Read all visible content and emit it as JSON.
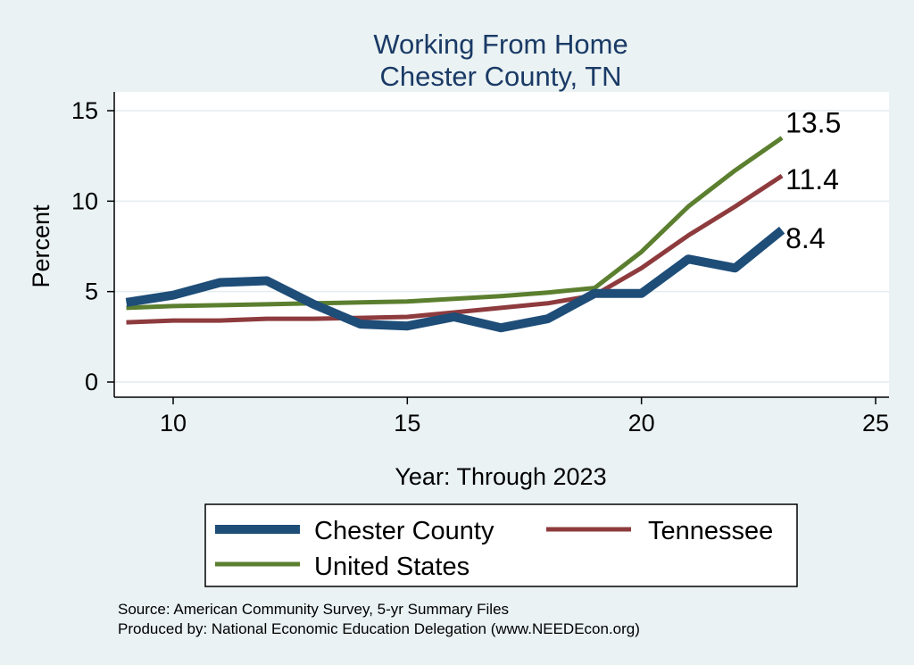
{
  "chart_data": {
    "type": "line",
    "title": [
      "Working From Home",
      "Chester County, TN"
    ],
    "xlabel": "Year: Through 2023",
    "ylabel": "Percent",
    "xlim": [
      9,
      25
    ],
    "ylim": [
      0,
      15
    ],
    "xticks": [
      10,
      15,
      20,
      25
    ],
    "yticks": [
      0,
      5,
      10,
      15
    ],
    "grid": true,
    "legend_position": "bottom",
    "x": [
      9,
      10,
      11,
      12,
      13,
      14,
      15,
      16,
      17,
      18,
      19,
      20,
      21,
      22,
      23
    ],
    "series": [
      {
        "name": "Chester County",
        "color": "#1e4d78",
        "width": 10,
        "values": [
          4.4,
          4.8,
          5.5,
          5.6,
          4.3,
          3.2,
          3.1,
          3.6,
          3.0,
          3.5,
          4.9,
          4.9,
          6.8,
          6.3,
          8.4
        ],
        "end_label": "8.4"
      },
      {
        "name": "Tennessee",
        "color": "#8e3b3e",
        "width": 5,
        "values": [
          3.3,
          3.4,
          3.4,
          3.5,
          3.5,
          3.55,
          3.6,
          3.85,
          4.1,
          4.35,
          4.8,
          6.3,
          8.1,
          9.7,
          11.4
        ],
        "end_label": "11.4"
      },
      {
        "name": "United States",
        "color": "#5b7f2f",
        "width": 5,
        "values": [
          4.1,
          4.2,
          4.25,
          4.3,
          4.35,
          4.4,
          4.45,
          4.6,
          4.75,
          4.95,
          5.2,
          7.2,
          9.7,
          11.7,
          13.5
        ],
        "end_label": "13.5"
      }
    ]
  },
  "legend": {
    "items": [
      "Chester County",
      "Tennessee",
      "United States"
    ]
  },
  "notes": {
    "source": "Source: American Community Survey, 5-yr Summary Files",
    "produced": "Produced by: National Economic Education Delegation (www.NEEDEcon.org)"
  },
  "colors": {
    "background": "#eaf2f3",
    "plot_background": "#ffffff",
    "title": "#1a3a66"
  }
}
